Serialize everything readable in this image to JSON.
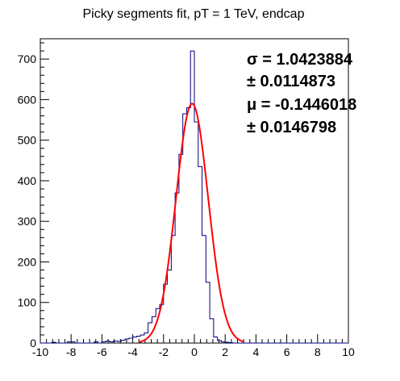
{
  "chart_data": {
    "type": "histogram",
    "title": "Picky segments fit, pT = 1 TeV, endcap",
    "xlabel": "",
    "ylabel": "",
    "xlim": [
      -10,
      10
    ],
    "ylim": [
      0,
      750
    ],
    "x_ticks": [
      -10,
      -8,
      -6,
      -4,
      -2,
      0,
      2,
      4,
      6,
      8,
      10
    ],
    "x_tick_labels": [
      "-10",
      "-8",
      "-6",
      "-4",
      "-2",
      "0",
      "2",
      "4",
      "6",
      "8",
      "10"
    ],
    "y_ticks": [
      0,
      100,
      200,
      300,
      400,
      500,
      600,
      700
    ],
    "y_tick_labels": [
      "0",
      "100",
      "200",
      "300",
      "400",
      "500",
      "600",
      "700"
    ],
    "grid": false,
    "series": [
      {
        "kind": "histogram",
        "color": "#000080",
        "bin_width": 0.25,
        "bin_low_edges": [
          -10.0,
          -9.75,
          -9.5,
          -9.25,
          -9.0,
          -8.75,
          -8.5,
          -8.25,
          -8.0,
          -7.75,
          -7.5,
          -7.25,
          -7.0,
          -6.75,
          -6.5,
          -6.25,
          -6.0,
          -5.75,
          -5.5,
          -5.25,
          -5.0,
          -4.75,
          -4.5,
          -4.25,
          -4.0,
          -3.75,
          -3.5,
          -3.25,
          -3.0,
          -2.75,
          -2.5,
          -2.25,
          -2.0,
          -1.75,
          -1.5,
          -1.25,
          -1.0,
          -0.75,
          -0.5,
          -0.25,
          0.0,
          0.25,
          0.5,
          0.75,
          1.0,
          1.25,
          1.5,
          1.75,
          2.0,
          2.25,
          2.5,
          2.75,
          3.0,
          3.25,
          3.5,
          3.75,
          4.0,
          4.25,
          4.5,
          4.75,
          5.0,
          5.25,
          5.5,
          5.75,
          6.0,
          6.25,
          6.5,
          6.75,
          7.0,
          7.25,
          7.5,
          7.75,
          8.0,
          8.25,
          8.5,
          8.75,
          9.0,
          9.25,
          9.5,
          9.75
        ],
        "counts": [
          0,
          0,
          0,
          2,
          0,
          0,
          0,
          3,
          3,
          0,
          0,
          0,
          0,
          0,
          3,
          0,
          3,
          5,
          3,
          5,
          4,
          7,
          10,
          12,
          15,
          17,
          20,
          25,
          50,
          65,
          85,
          95,
          145,
          180,
          265,
          370,
          465,
          565,
          580,
          720,
          545,
          435,
          265,
          150,
          60,
          15,
          6,
          3,
          2,
          1,
          0,
          0,
          0,
          0,
          0,
          0,
          0,
          0,
          0,
          0,
          0,
          0,
          0,
          0,
          0,
          0,
          0,
          0,
          0,
          0,
          0,
          0,
          0,
          0,
          0,
          0,
          0,
          0,
          0,
          0
        ]
      },
      {
        "kind": "gaussian_fit",
        "color": "#ff0000",
        "amplitude": 590,
        "mean": -0.1446018,
        "sigma": 1.0423884
      }
    ],
    "stats": {
      "sigma_line": "σ = 1.0423884",
      "sigma_err_line": "± 0.0114873",
      "mu_line": "μ = -0.1446018",
      "mu_err_line": "± 0.0146798"
    }
  }
}
